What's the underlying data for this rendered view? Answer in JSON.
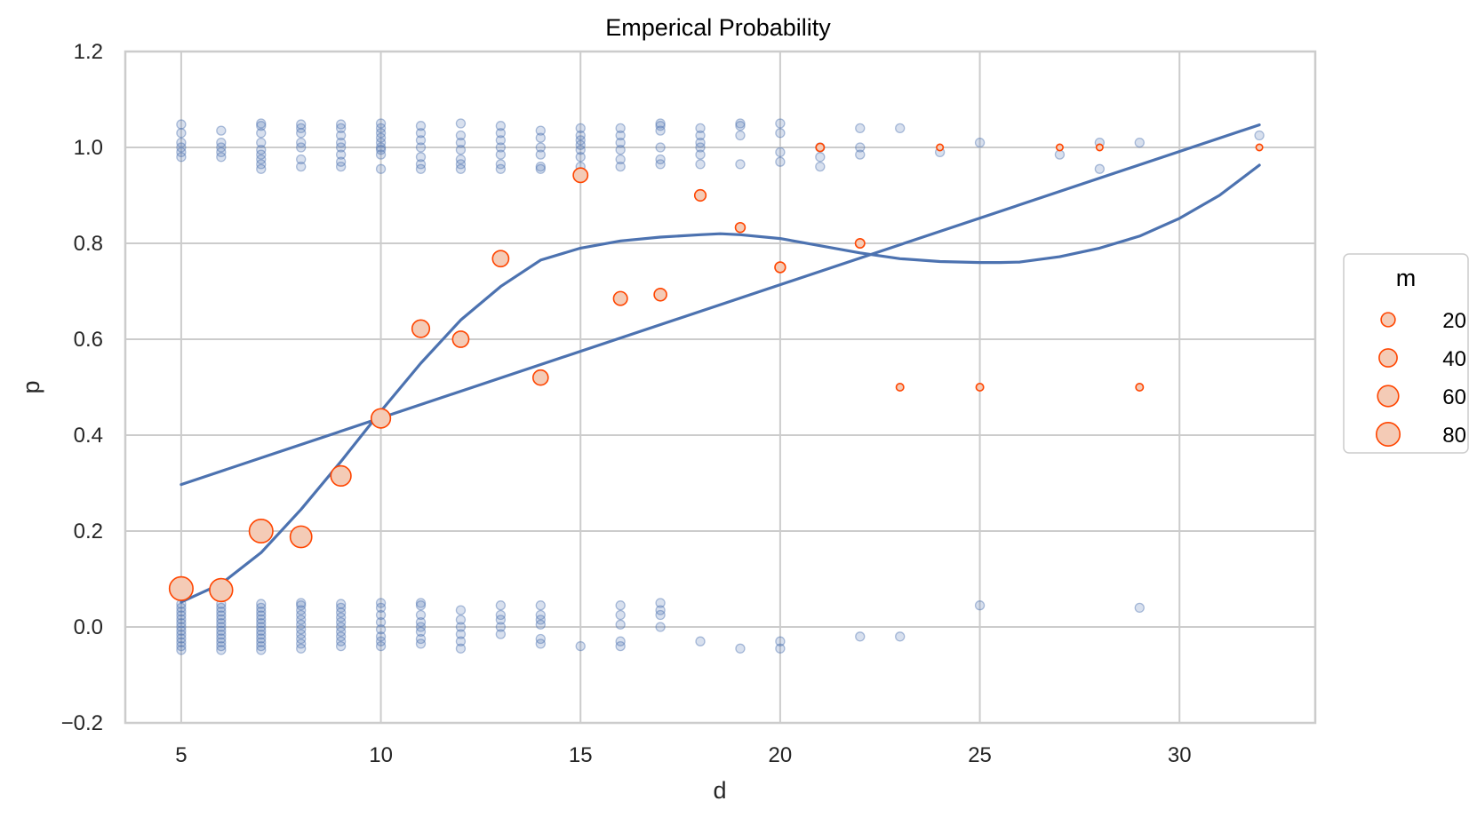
{
  "chart_data": {
    "type": "scatter",
    "title": "Emperical Probability",
    "xlabel": "d",
    "ylabel": "p",
    "xlim": [
      3.6,
      33.4
    ],
    "ylim": [
      -0.2,
      1.2
    ],
    "xticks": [
      "5",
      "10",
      "15",
      "20",
      "25",
      "30"
    ],
    "xtick_values": [
      5,
      10,
      15,
      20,
      25,
      30
    ],
    "yticks": [
      "−0.2",
      "0.0",
      "0.2",
      "0.4",
      "0.6",
      "0.8",
      "1.0",
      "1.2"
    ],
    "ytick_values": [
      -0.2,
      0.0,
      0.2,
      0.4,
      0.6,
      0.8,
      1.0,
      1.2
    ],
    "grid": true,
    "legend": {
      "title": "m",
      "placement": "right",
      "entries": [
        {
          "label": "20",
          "size": 20
        },
        {
          "label": "40",
          "size": 40
        },
        {
          "label": "60",
          "size": 60
        },
        {
          "label": "80",
          "size": 80
        }
      ]
    },
    "colors": {
      "raw_points": "#4c72b0",
      "empirical_face": "#f4cbb6",
      "empirical_edge": "#ff4500",
      "fit_line": "#4c72b0",
      "grid": "#cccccc",
      "frame": "#cccccc"
    },
    "raw_points_columns": [
      {
        "x": 5,
        "y": [
          -0.048,
          -0.04,
          -0.032,
          -0.024,
          -0.016,
          -0.008,
          0.0,
          0.008,
          0.016,
          0.024,
          0.032,
          0.04,
          0.048,
          0.98,
          0.99,
          1.0,
          1.01,
          1.03,
          1.048
        ]
      },
      {
        "x": 6,
        "y": [
          -0.048,
          -0.04,
          -0.032,
          -0.024,
          -0.016,
          -0.008,
          0.0,
          0.008,
          0.016,
          0.024,
          0.032,
          0.04,
          0.048,
          0.98,
          0.99,
          1.0,
          1.01,
          1.035
        ]
      },
      {
        "x": 7,
        "y": [
          -0.048,
          -0.04,
          -0.032,
          -0.024,
          -0.016,
          -0.008,
          0.0,
          0.008,
          0.016,
          0.024,
          0.032,
          0.04,
          0.048,
          0.955,
          0.965,
          0.975,
          0.985,
          0.995,
          1.01,
          1.03,
          1.045,
          1.05
        ]
      },
      {
        "x": 8,
        "y": [
          -0.045,
          -0.035,
          -0.025,
          -0.015,
          -0.005,
          0.005,
          0.015,
          0.025,
          0.035,
          0.045,
          0.05,
          0.96,
          0.975,
          1.0,
          1.01,
          1.03,
          1.04,
          1.048
        ]
      },
      {
        "x": 9,
        "y": [
          -0.04,
          -0.03,
          -0.02,
          -0.01,
          0.0,
          0.01,
          0.02,
          0.03,
          0.04,
          0.048,
          0.96,
          0.97,
          0.985,
          1.0,
          1.01,
          1.025,
          1.04,
          1.048
        ]
      },
      {
        "x": 10,
        "y": [
          -0.04,
          -0.03,
          -0.02,
          -0.005,
          0.01,
          0.025,
          0.04,
          0.05,
          0.955,
          0.985,
          0.995,
          1.0,
          1.01,
          1.02,
          1.03,
          1.04,
          1.05
        ]
      },
      {
        "x": 11,
        "y": [
          -0.035,
          -0.025,
          -0.01,
          0.0,
          0.01,
          0.025,
          0.045,
          0.05,
          0.955,
          0.965,
          0.98,
          1.0,
          1.015,
          1.03,
          1.045
        ]
      },
      {
        "x": 12,
        "y": [
          -0.045,
          -0.03,
          -0.015,
          0.0,
          0.015,
          0.035,
          0.955,
          0.965,
          0.975,
          0.995,
          1.01,
          1.025,
          1.05
        ]
      },
      {
        "x": 13,
        "y": [
          -0.015,
          0.0,
          0.015,
          0.025,
          0.045,
          0.955,
          0.965,
          0.985,
          1.0,
          1.015,
          1.03,
          1.045
        ]
      },
      {
        "x": 14,
        "y": [
          -0.035,
          -0.025,
          0.005,
          0.015,
          0.025,
          0.045,
          0.955,
          0.96,
          0.985,
          1.0,
          1.02,
          1.035
        ]
      },
      {
        "x": 15,
        "y": [
          -0.04,
          0.96,
          0.98,
          0.995,
          1.005,
          1.015,
          1.025,
          1.04
        ]
      },
      {
        "x": 16,
        "y": [
          -0.04,
          -0.03,
          0.005,
          0.025,
          0.045,
          0.96,
          0.975,
          0.995,
          1.01,
          1.025,
          1.04
        ]
      },
      {
        "x": 17,
        "y": [
          0.0,
          0.025,
          0.035,
          0.05,
          0.965,
          0.975,
          1.0,
          1.035,
          1.045,
          1.05
        ]
      },
      {
        "x": 18,
        "y": [
          -0.03,
          0.965,
          0.985,
          1.0,
          1.01,
          1.025,
          1.04
        ]
      },
      {
        "x": 19,
        "y": [
          -0.045,
          0.965,
          1.025,
          1.045,
          1.05
        ]
      },
      {
        "x": 20,
        "y": [
          -0.045,
          -0.03,
          0.97,
          0.99,
          1.03,
          1.05
        ]
      },
      {
        "x": 21,
        "y": [
          0.96,
          0.98,
          1.0
        ]
      },
      {
        "x": 22,
        "y": [
          -0.02,
          0.985,
          1.0,
          1.04
        ]
      },
      {
        "x": 23,
        "y": [
          -0.02,
          1.04
        ]
      },
      {
        "x": 24,
        "y": [
          0.99
        ]
      },
      {
        "x": 25,
        "y": [
          0.045,
          1.01
        ]
      },
      {
        "x": 27,
        "y": [
          0.985
        ]
      },
      {
        "x": 28,
        "y": [
          0.955,
          1.01
        ]
      },
      {
        "x": 29,
        "y": [
          0.04,
          1.01
        ]
      },
      {
        "x": 32,
        "y": [
          1.025
        ]
      }
    ],
    "empirical_points": [
      {
        "x": 5,
        "y": 0.08,
        "m": 80
      },
      {
        "x": 6,
        "y": 0.077,
        "m": 75
      },
      {
        "x": 7,
        "y": 0.2,
        "m": 80
      },
      {
        "x": 8,
        "y": 0.188,
        "m": 64
      },
      {
        "x": 9,
        "y": 0.315,
        "m": 54
      },
      {
        "x": 10,
        "y": 0.435,
        "m": 48
      },
      {
        "x": 11,
        "y": 0.622,
        "m": 37
      },
      {
        "x": 12,
        "y": 0.6,
        "m": 30
      },
      {
        "x": 13,
        "y": 0.768,
        "m": 30
      },
      {
        "x": 14,
        "y": 0.52,
        "m": 25
      },
      {
        "x": 15,
        "y": 0.942,
        "m": 22
      },
      {
        "x": 16,
        "y": 0.685,
        "m": 19
      },
      {
        "x": 17,
        "y": 0.693,
        "m": 14
      },
      {
        "x": 18,
        "y": 0.9,
        "m": 10
      },
      {
        "x": 19,
        "y": 0.833,
        "m": 6
      },
      {
        "x": 20,
        "y": 0.75,
        "m": 8
      },
      {
        "x": 21,
        "y": 1.0,
        "m": 3
      },
      {
        "x": 22,
        "y": 0.8,
        "m": 5
      },
      {
        "x": 23,
        "y": 0.5,
        "m": 2
      },
      {
        "x": 24,
        "y": 1.0,
        "m": 1
      },
      {
        "x": 25,
        "y": 0.5,
        "m": 2
      },
      {
        "x": 27,
        "y": 1.0,
        "m": 1
      },
      {
        "x": 28,
        "y": 1.0,
        "m": 1
      },
      {
        "x": 29,
        "y": 0.5,
        "m": 2
      },
      {
        "x": 32,
        "y": 1.0,
        "m": 1
      }
    ],
    "series": [
      {
        "type": "line",
        "x": [
          5,
          32
        ],
        "y": [
          0.297,
          1.047
        ]
      },
      {
        "type": "line",
        "x": [
          5,
          6,
          7,
          8,
          9,
          10,
          11,
          12,
          13,
          14,
          15,
          16,
          17,
          18,
          18.5,
          19,
          20,
          21,
          22,
          23,
          24,
          25,
          25.5,
          26,
          27,
          28,
          29,
          30,
          31,
          32
        ],
        "y": [
          0.052,
          0.09,
          0.155,
          0.245,
          0.345,
          0.45,
          0.55,
          0.64,
          0.71,
          0.765,
          0.79,
          0.805,
          0.813,
          0.818,
          0.82,
          0.818,
          0.81,
          0.795,
          0.78,
          0.768,
          0.762,
          0.76,
          0.76,
          0.761,
          0.772,
          0.79,
          0.815,
          0.852,
          0.9,
          0.963
        ]
      }
    ]
  }
}
